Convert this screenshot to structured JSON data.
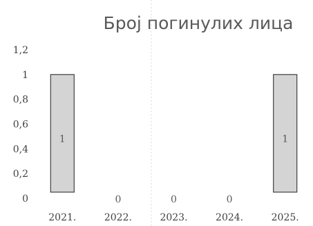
{
  "chart_data": {
    "type": "bar",
    "title": "Број погинулих лица",
    "categories": [
      "2021.",
      "2022.",
      "2023.",
      "2024.",
      "2025."
    ],
    "values": [
      1,
      0,
      0,
      0,
      1
    ],
    "data_labels": [
      "1",
      "0",
      "0",
      "0",
      "1"
    ],
    "ylim": [
      0,
      1.2
    ],
    "yticks": [
      "0",
      "0,2",
      "0,4",
      "0,6",
      "0,8",
      "1",
      "1,2"
    ],
    "xlabel": "",
    "ylabel": "",
    "grid": false,
    "legend": "none",
    "colors": {
      "bar_fill": "#d4d4d4",
      "bar_stroke": "#3f3f3f",
      "text": "#404040"
    }
  }
}
